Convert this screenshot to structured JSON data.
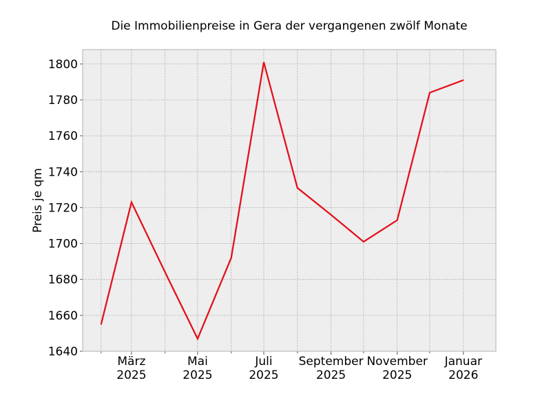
{
  "chart_data": {
    "type": "line",
    "title": "Die Immobilienpreise in Gera der vergangenen zwölf Monate",
    "xlabel": "",
    "ylabel": "Preis je qm",
    "x": [
      "2025-02",
      "2025-03",
      "2025-04",
      "2025-05",
      "2025-06",
      "2025-07",
      "2025-08",
      "2025-09",
      "2025-10",
      "2025-11",
      "2025-12",
      "2026-01"
    ],
    "series": [
      {
        "values": [
          1655,
          1723,
          1684,
          1647,
          1692,
          1801,
          1731,
          1716,
          1701,
          1713,
          1784,
          1791
        ],
        "color": "#e3101c"
      }
    ],
    "ylim": [
      1640,
      1808
    ],
    "yticks": [
      1640,
      1660,
      1680,
      1700,
      1720,
      1740,
      1760,
      1780,
      1800
    ],
    "xticks": [
      {
        "x": "2025-03",
        "month": "März",
        "year": "2025"
      },
      {
        "x": "2025-05",
        "month": "Mai",
        "year": "2025"
      },
      {
        "x": "2025-07",
        "month": "Juli",
        "year": "2025"
      },
      {
        "x": "2025-09",
        "month": "September",
        "year": "2025"
      },
      {
        "x": "2025-11",
        "month": "November",
        "year": "2025"
      },
      {
        "x": "2026-01",
        "month": "Januar",
        "year": "2026"
      }
    ],
    "minor_xticks": [
      "2025-02",
      "2025-04",
      "2025-06",
      "2025-08",
      "2025-10",
      "2025-12"
    ],
    "xlim": [
      "2025-01-15",
      "2026-01-31"
    ],
    "grid": true,
    "background": "#eeeeee",
    "grid_color": "#b0b0b0"
  }
}
